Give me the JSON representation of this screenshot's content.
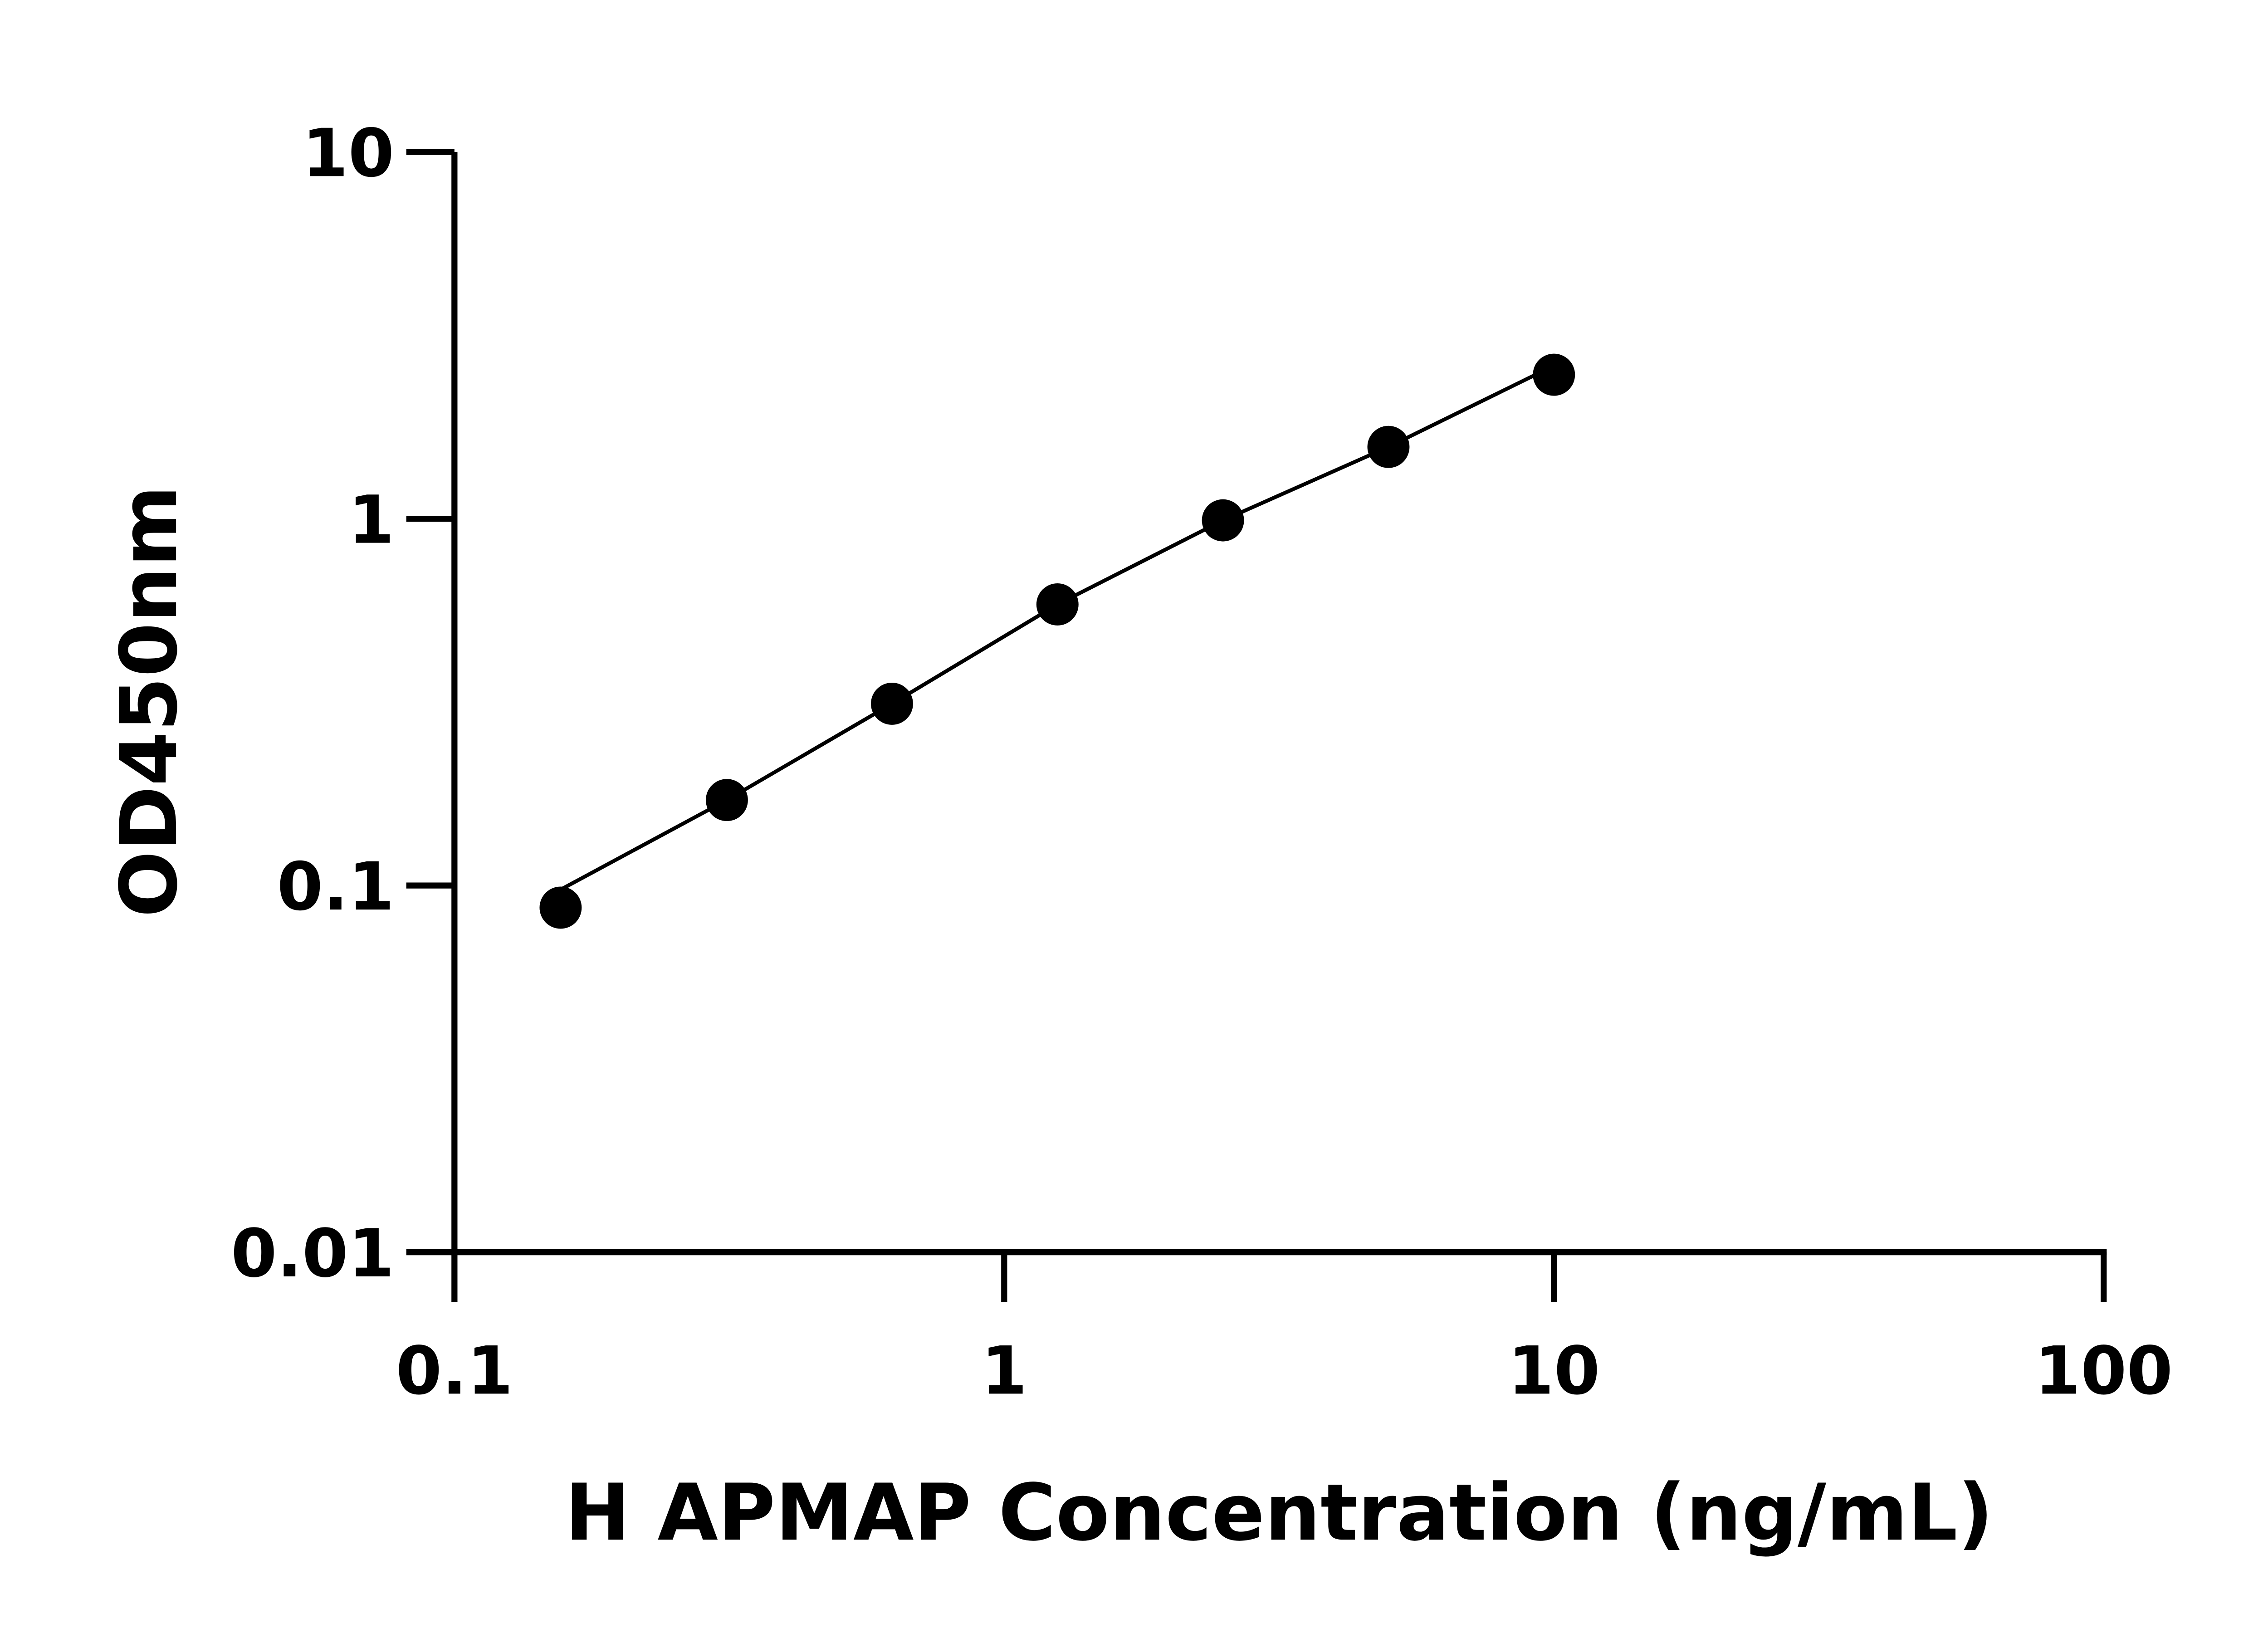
{
  "chart_data": {
    "type": "scatter",
    "title": "",
    "xlabel": "H APMAP Concentration (ng/mL)",
    "ylabel": "OD450nm",
    "x_scale": "log",
    "y_scale": "log",
    "xlim": [
      0.1,
      100
    ],
    "ylim": [
      0.01,
      10
    ],
    "x_ticks": [
      0.1,
      1,
      10,
      100
    ],
    "x_tick_labels": [
      "0.1",
      "1",
      "10",
      "100"
    ],
    "y_ticks": [
      0.01,
      0.1,
      1,
      10
    ],
    "y_tick_labels": [
      "0.01",
      "0.1",
      "1",
      "10"
    ],
    "grid": false,
    "fit_line": true,
    "colors": {
      "points": "#000000",
      "line": "#000000"
    },
    "series": [
      {
        "x": [
          0.156,
          0.313,
          0.625,
          1.25,
          2.5,
          5,
          10
        ],
        "y": [
          0.087,
          0.171,
          0.313,
          0.584,
          0.99,
          1.57,
          2.47
        ]
      }
    ]
  }
}
